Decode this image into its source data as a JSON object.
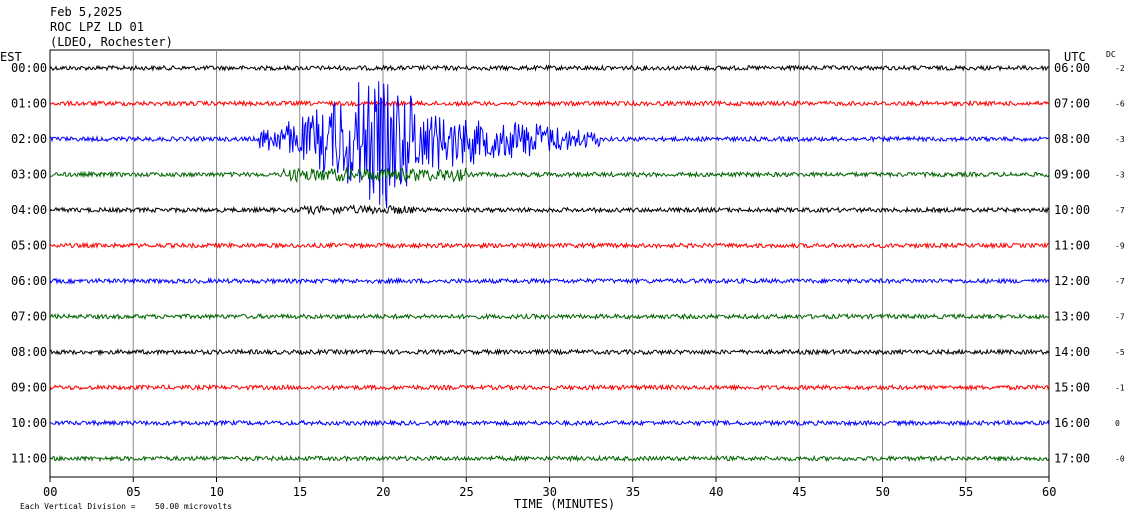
{
  "header": {
    "date": "Feb 5,2025",
    "station": "ROC LPZ LD 01",
    "network": "(LDEO, Rochester)"
  },
  "chart_data": {
    "type": "line",
    "title": "Feb 5,2025",
    "left_axis_label": "EST",
    "right_axis_label": "UTC",
    "dc_label": "DC",
    "xlabel": "TIME (MINUTES)",
    "xlim": [
      0,
      60
    ],
    "x_ticks": [
      "00",
      "05",
      "10",
      "15",
      "20",
      "25",
      "30",
      "35",
      "40",
      "45",
      "50",
      "55",
      "60"
    ],
    "footer_note": "Each Vertical Division =",
    "scale_value": "50.00 microvolts",
    "grid": true,
    "trace_colors": [
      "#000000",
      "#ff0000",
      "#0000ff",
      "#006400"
    ],
    "series": [
      {
        "est": "00:00",
        "utc": "06:00",
        "dc": "-2",
        "color": "#000000"
      },
      {
        "est": "01:00",
        "utc": "07:00",
        "dc": "-6",
        "color": "#ff0000"
      },
      {
        "est": "02:00",
        "utc": "08:00",
        "dc": "-3",
        "color": "#0000ff"
      },
      {
        "est": "03:00",
        "utc": "09:00",
        "dc": "-3",
        "color": "#006400"
      },
      {
        "est": "04:00",
        "utc": "10:00",
        "dc": "-7",
        "color": "#000000"
      },
      {
        "est": "05:00",
        "utc": "11:00",
        "dc": "-9",
        "color": "#ff0000"
      },
      {
        "est": "06:00",
        "utc": "12:00",
        "dc": "-7",
        "color": "#0000ff"
      },
      {
        "est": "07:00",
        "utc": "13:00",
        "dc": "-7",
        "color": "#006400"
      },
      {
        "est": "08:00",
        "utc": "14:00",
        "dc": "-5",
        "color": "#000000"
      },
      {
        "est": "09:00",
        "utc": "15:00",
        "dc": "-1",
        "color": "#ff0000"
      },
      {
        "est": "10:00",
        "utc": "16:00",
        "dc": "0",
        "color": "#0000ff"
      },
      {
        "est": "11:00",
        "utc": "17:00",
        "dc": "-0",
        "color": "#006400"
      }
    ],
    "event": {
      "description": "large earthquake arrival",
      "trace_index": 2,
      "start_minute": 12.5,
      "peak_minute": 20,
      "end_minute": 33
    }
  }
}
